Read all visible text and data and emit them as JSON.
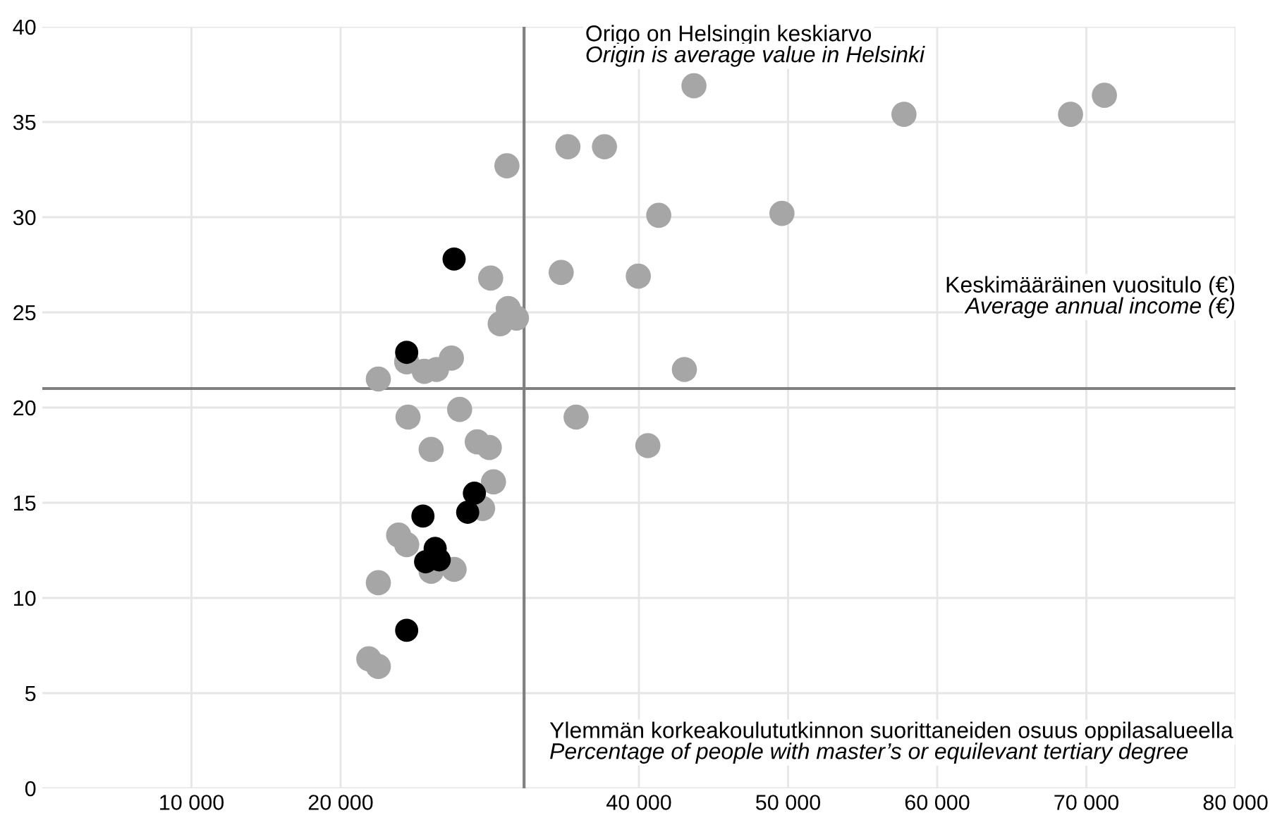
{
  "chart_data": {
    "type": "scatter",
    "title": "Origo on Helsingin keskiarvo\nOrigin is average value in Helsinki",
    "xlabel": "Keskimääräinen vuositulo (€)\nAverage annual income (€)",
    "ylabel": "Ylemmän korkeakoulututkinnon suorittaneiden osuus oppilasalueella\nPercentage of people with master’s or equilevant tertiary degree",
    "ref_lines": [
      {
        "axis": "x",
        "value": 32300
      },
      {
        "axis": "y",
        "value": 21.0
      }
    ],
    "xlim": [
      0,
      80000
    ],
    "ylim": [
      0,
      40
    ],
    "xticks": [
      {
        "value": 10000,
        "label": "10 000"
      },
      {
        "value": 20000,
        "label": "20 000"
      },
      {
        "value": 40000,
        "label": "40 000"
      },
      {
        "value": 50000,
        "label": "50 000"
      },
      {
        "value": 60000,
        "label": "60 000"
      },
      {
        "value": 70000,
        "label": "70 000"
      },
      {
        "value": 80000,
        "label": "80 000"
      }
    ],
    "yticks": [
      0,
      5,
      10,
      15,
      20,
      25,
      30,
      35,
      40
    ],
    "grid": true,
    "marker": "circle",
    "series": [
      {
        "color": "#a6a6a6",
        "x": [
          43690,
          57770,
          68940,
          71210,
          35240,
          37690,
          31150,
          41330,
          49590,
          34790,
          39960,
          43050,
          30060,
          31240,
          31790,
          30700,
          22530,
          24430,
          25610,
          26430,
          27430,
          35790,
          40600,
          24520,
          27980,
          26070,
          29160,
          29970,
          30250,
          29520,
          23890,
          24430,
          26070,
          27610,
          22530,
          21890,
          22530
        ],
        "values": [
          36.9,
          35.4,
          35.4,
          36.4,
          33.7,
          33.7,
          32.7,
          30.1,
          30.2,
          27.1,
          26.9,
          22.0,
          26.8,
          25.2,
          24.7,
          24.4,
          21.5,
          22.4,
          21.9,
          22.0,
          22.6,
          19.5,
          18.0,
          19.5,
          19.9,
          17.8,
          18.2,
          17.9,
          16.1,
          14.7,
          13.3,
          12.8,
          11.4,
          11.5,
          10.8,
          6.8,
          6.4
        ]
      },
      {
        "color": "#000000",
        "x": [
          27610,
          24430,
          25520,
          28520,
          28970,
          26340,
          25700,
          26610,
          24430
        ],
        "values": [
          27.8,
          22.9,
          14.3,
          14.5,
          15.5,
          12.6,
          11.9,
          12.0,
          8.3
        ]
      }
    ]
  }
}
